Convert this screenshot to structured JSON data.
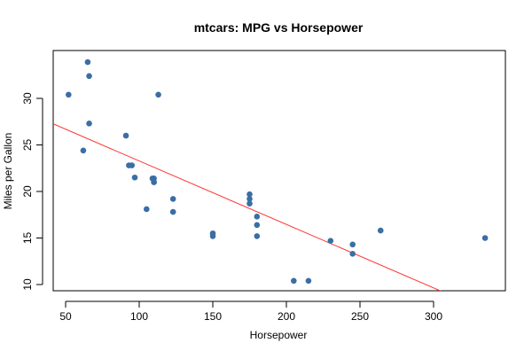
{
  "chart_data": {
    "type": "scatter",
    "title": "mtcars: MPG vs Horsepower",
    "xlabel": "Horsepower",
    "ylabel": "Miles per Gallon",
    "xlim": [
      40,
      345
    ],
    "ylim": [
      9.5,
      35
    ],
    "xticks": [
      50,
      100,
      150,
      200,
      250,
      300
    ],
    "yticks": [
      10,
      15,
      20,
      25,
      30
    ],
    "grid": false,
    "legend": "none",
    "point_color": "#3a6ea5",
    "line_color": "#ff3333",
    "points": [
      {
        "x": 110,
        "y": 21.0
      },
      {
        "x": 110,
        "y": 21.0
      },
      {
        "x": 93,
        "y": 22.8
      },
      {
        "x": 110,
        "y": 21.4
      },
      {
        "x": 175,
        "y": 18.7
      },
      {
        "x": 105,
        "y": 18.1
      },
      {
        "x": 245,
        "y": 14.3
      },
      {
        "x": 62,
        "y": 24.4
      },
      {
        "x": 95,
        "y": 22.8
      },
      {
        "x": 123,
        "y": 19.2
      },
      {
        "x": 123,
        "y": 17.8
      },
      {
        "x": 180,
        "y": 16.4
      },
      {
        "x": 180,
        "y": 17.3
      },
      {
        "x": 180,
        "y": 15.2
      },
      {
        "x": 205,
        "y": 10.4
      },
      {
        "x": 215,
        "y": 10.4
      },
      {
        "x": 230,
        "y": 14.7
      },
      {
        "x": 66,
        "y": 32.4
      },
      {
        "x": 52,
        "y": 30.4
      },
      {
        "x": 65,
        "y": 33.9
      },
      {
        "x": 97,
        "y": 21.5
      },
      {
        "x": 150,
        "y": 15.5
      },
      {
        "x": 150,
        "y": 15.2
      },
      {
        "x": 245,
        "y": 13.3
      },
      {
        "x": 175,
        "y": 19.2
      },
      {
        "x": 66,
        "y": 27.3
      },
      {
        "x": 91,
        "y": 26.0
      },
      {
        "x": 113,
        "y": 30.4
      },
      {
        "x": 264,
        "y": 15.8
      },
      {
        "x": 175,
        "y": 19.7
      },
      {
        "x": 335,
        "y": 15.0
      },
      {
        "x": 109,
        "y": 21.4
      }
    ],
    "fit_line": {
      "intercept": 30.1,
      "slope": -0.0682
    }
  }
}
